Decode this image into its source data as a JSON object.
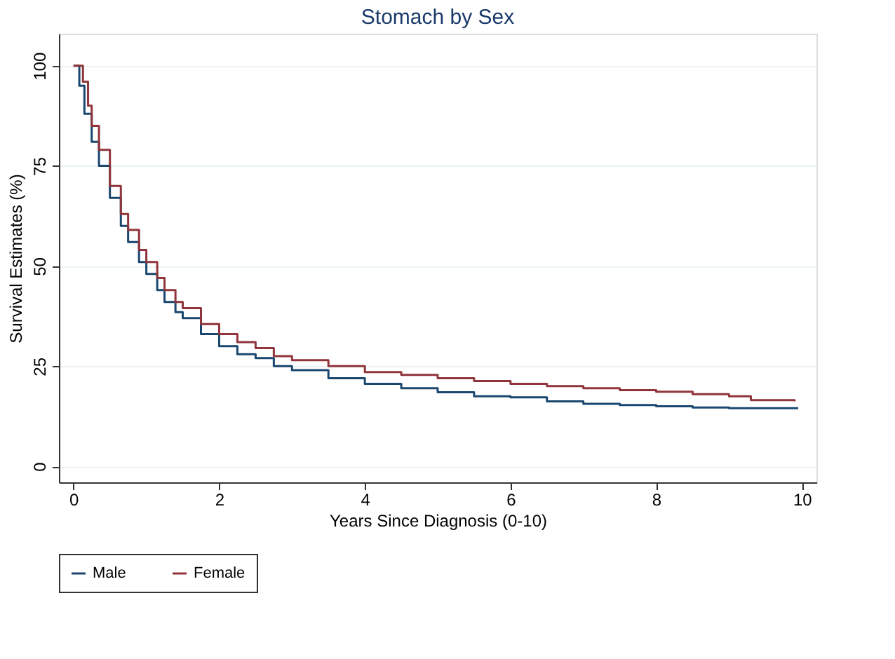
{
  "chart_data": {
    "type": "step",
    "title": "Stomach by Sex",
    "xlabel": "Years Since Diagnosis (0-10)",
    "ylabel": "Survival Estimates (%)",
    "xlim": [
      -0.2,
      10.2
    ],
    "ylim": [
      -4,
      108
    ],
    "xticks": [
      0,
      2,
      4,
      6,
      8,
      10
    ],
    "yticks": [
      0,
      25,
      50,
      75,
      100
    ],
    "grid": "y",
    "legend": "bottom",
    "series": [
      {
        "name": "Male",
        "color": "#1a476f",
        "x": [
          0,
          0.08,
          0.15,
          0.25,
          0.35,
          0.5,
          0.65,
          0.75,
          0.9,
          1,
          1.15,
          1.25,
          1.4,
          1.5,
          1.75,
          2,
          2.25,
          2.5,
          2.75,
          3,
          3.5,
          4,
          4.5,
          5,
          5.5,
          6,
          6.5,
          7,
          7.5,
          8,
          8.5,
          9,
          9.5,
          9.95
        ],
        "values": [
          100,
          95,
          88,
          81,
          75,
          67,
          60,
          56,
          51,
          48,
          44,
          41,
          38.5,
          37,
          33,
          30,
          28,
          27,
          25,
          24,
          22,
          20.6,
          19.5,
          18.5,
          17.5,
          17.2,
          16.2,
          15.6,
          15.3,
          15,
          14.7,
          14.5,
          14.5,
          14.5
        ]
      },
      {
        "name": "Female",
        "color": "#90353b",
        "x": [
          0,
          0.13,
          0.2,
          0.25,
          0.35,
          0.5,
          0.65,
          0.75,
          0.9,
          1,
          1.15,
          1.25,
          1.4,
          1.5,
          1.75,
          2,
          2.25,
          2.5,
          2.75,
          3,
          3.5,
          4,
          4.5,
          5,
          5.5,
          6,
          6.5,
          7,
          7.5,
          8,
          8.5,
          9,
          9.3,
          9.9
        ],
        "values": [
          100,
          96,
          90,
          85,
          79,
          70,
          63,
          59,
          54,
          51,
          47,
          44,
          41,
          39.5,
          35.5,
          33,
          31,
          29.5,
          27.5,
          26.5,
          25,
          23.5,
          22.8,
          22,
          21.3,
          20.6,
          20,
          19.5,
          19,
          18.6,
          18,
          17.5,
          16.5,
          16.2
        ]
      }
    ]
  }
}
